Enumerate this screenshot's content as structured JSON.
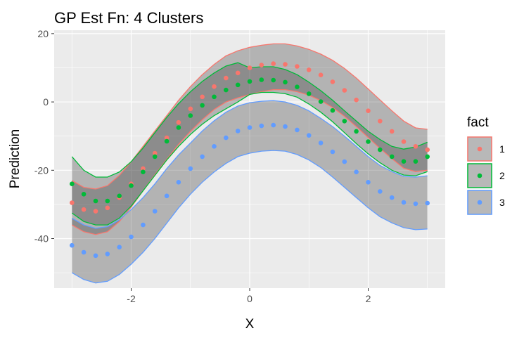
{
  "chart_data": {
    "type": "scatter",
    "title": "GP Est Fn: 4 Clusters",
    "xlabel": "X",
    "ylabel": "Prediction",
    "xlim": [
      -3.3,
      3.3
    ],
    "ylim": [
      -54.5,
      21
    ],
    "x_ticks": [
      -2,
      0,
      2
    ],
    "y_ticks": [
      20,
      0,
      -20,
      -40
    ],
    "grid": true,
    "legend": {
      "title": "fact",
      "position": "right",
      "entries": [
        "1",
        "2",
        "3"
      ]
    },
    "series": [
      {
        "name": "1",
        "color": "#F8766D",
        "x": [
          -3.0,
          -2.8,
          -2.6,
          -2.4,
          -2.2,
          -2.0,
          -1.8,
          -1.6,
          -1.4,
          -1.2,
          -1.0,
          -0.8,
          -0.6,
          -0.4,
          -0.2,
          0.0,
          0.2,
          0.4,
          0.6,
          0.8,
          1.0,
          1.2,
          1.4,
          1.6,
          1.8,
          2.0,
          2.2,
          2.4,
          2.6,
          2.8,
          3.0
        ],
        "y": [
          -29.5,
          -31.5,
          -32.0,
          -31.0,
          -28.0,
          -24.0,
          -19.5,
          -15.0,
          -10.5,
          -6.0,
          -2.0,
          1.5,
          4.5,
          7.0,
          8.5,
          10.0,
          10.8,
          11.2,
          11.0,
          10.4,
          9.4,
          7.9,
          5.9,
          3.4,
          0.6,
          -2.6,
          -5.6,
          -8.6,
          -11.6,
          -13.0,
          -14.0
        ],
        "lower": [
          -36.0,
          -38.0,
          -38.8,
          -38.0,
          -35.0,
          -30.8,
          -26.0,
          -21.3,
          -16.8,
          -12.4,
          -8.6,
          -5.2,
          -2.2,
          0.0,
          1.2,
          2.2,
          3.0,
          3.6,
          3.6,
          3.0,
          2.0,
          0.4,
          -1.6,
          -4.2,
          -7.2,
          -10.4,
          -13.6,
          -16.6,
          -19.4,
          -20.4,
          -20.0
        ],
        "upper": [
          -23.0,
          -25.0,
          -25.5,
          -24.5,
          -21.5,
          -17.5,
          -13.0,
          -8.5,
          -4.0,
          0.5,
          4.5,
          8.0,
          11.0,
          13.5,
          15.0,
          16.0,
          16.6,
          17.0,
          17.0,
          16.4,
          15.4,
          14.0,
          12.2,
          9.8,
          7.0,
          3.8,
          0.6,
          -2.6,
          -5.6,
          -7.6,
          -8.0
        ]
      },
      {
        "name": "2",
        "color": "#00BA38",
        "x": [
          -3.0,
          -2.8,
          -2.6,
          -2.4,
          -2.2,
          -2.0,
          -1.8,
          -1.6,
          -1.4,
          -1.2,
          -1.0,
          -0.8,
          -0.6,
          -0.4,
          -0.2,
          0.0,
          0.2,
          0.4,
          0.6,
          0.8,
          1.0,
          1.2,
          1.4,
          1.6,
          1.8,
          2.0,
          2.2,
          2.4,
          2.6,
          2.8,
          3.0
        ],
        "y": [
          -24.0,
          -27.0,
          -29.0,
          -29.0,
          -27.5,
          -24.5,
          -20.5,
          -16.0,
          -11.5,
          -7.5,
          -4.0,
          -1.0,
          1.5,
          3.5,
          5.0,
          6.0,
          6.5,
          6.4,
          5.8,
          4.4,
          2.4,
          0.1,
          -2.5,
          -5.6,
          -8.6,
          -11.6,
          -14.0,
          -16.0,
          -17.4,
          -17.4,
          -16.0
        ],
        "lower": [
          -32.5,
          -35.0,
          -36.0,
          -36.0,
          -34.0,
          -30.5,
          -26.0,
          -21.5,
          -17.0,
          -13.0,
          -9.5,
          -6.5,
          -4.0,
          -2.0,
          0.0,
          2.2,
          2.8,
          2.8,
          2.4,
          1.4,
          -0.6,
          -3.0,
          -5.8,
          -9.0,
          -12.2,
          -15.2,
          -17.8,
          -20.0,
          -21.4,
          -21.6,
          -20.4
        ],
        "upper": [
          -16.0,
          -20.0,
          -22.0,
          -22.0,
          -20.5,
          -17.5,
          -13.5,
          -9.0,
          -4.5,
          -0.5,
          3.0,
          6.0,
          8.5,
          10.5,
          11.5,
          10.0,
          10.3,
          10.3,
          9.5,
          8.0,
          5.8,
          3.3,
          0.5,
          -2.6,
          -5.6,
          -8.6,
          -11.0,
          -13.0,
          -13.8,
          -13.2,
          -11.8
        ]
      },
      {
        "name": "3",
        "color": "#619CFF",
        "x": [
          -3.0,
          -2.8,
          -2.6,
          -2.4,
          -2.2,
          -2.0,
          -1.8,
          -1.6,
          -1.4,
          -1.2,
          -1.0,
          -0.8,
          -0.6,
          -0.4,
          -0.2,
          0.0,
          0.2,
          0.4,
          0.6,
          0.8,
          1.0,
          1.2,
          1.4,
          1.6,
          1.8,
          2.0,
          2.2,
          2.4,
          2.6,
          2.8,
          3.0
        ],
        "y": [
          -42.0,
          -44.0,
          -45.0,
          -44.5,
          -42.5,
          -39.5,
          -36.0,
          -32.0,
          -27.5,
          -23.5,
          -19.5,
          -16.0,
          -13.0,
          -10.5,
          -8.5,
          -7.5,
          -7.0,
          -6.8,
          -7.2,
          -8.2,
          -9.8,
          -12.0,
          -14.6,
          -17.5,
          -20.5,
          -23.5,
          -26.2,
          -28.0,
          -29.4,
          -29.8,
          -29.6
        ],
        "lower": [
          -50.0,
          -52.0,
          -53.0,
          -52.5,
          -50.5,
          -47.5,
          -44.0,
          -40.0,
          -35.5,
          -31.0,
          -27.0,
          -23.5,
          -20.5,
          -18.0,
          -16.0,
          -15.0,
          -14.4,
          -14.2,
          -14.4,
          -15.4,
          -17.0,
          -19.2,
          -22.0,
          -25.0,
          -28.0,
          -31.0,
          -33.6,
          -35.4,
          -36.8,
          -37.4,
          -37.2
        ],
        "upper": [
          -34.0,
          -36.0,
          -37.0,
          -36.5,
          -34.5,
          -31.5,
          -28.0,
          -24.0,
          -19.5,
          -15.5,
          -12.0,
          -8.5,
          -5.5,
          -3.0,
          -1.2,
          -0.2,
          0.2,
          0.4,
          0.0,
          -1.0,
          -2.6,
          -4.8,
          -7.2,
          -10.0,
          -13.0,
          -16.0,
          -18.6,
          -20.4,
          -21.8,
          -22.0,
          -21.6
        ]
      }
    ]
  }
}
